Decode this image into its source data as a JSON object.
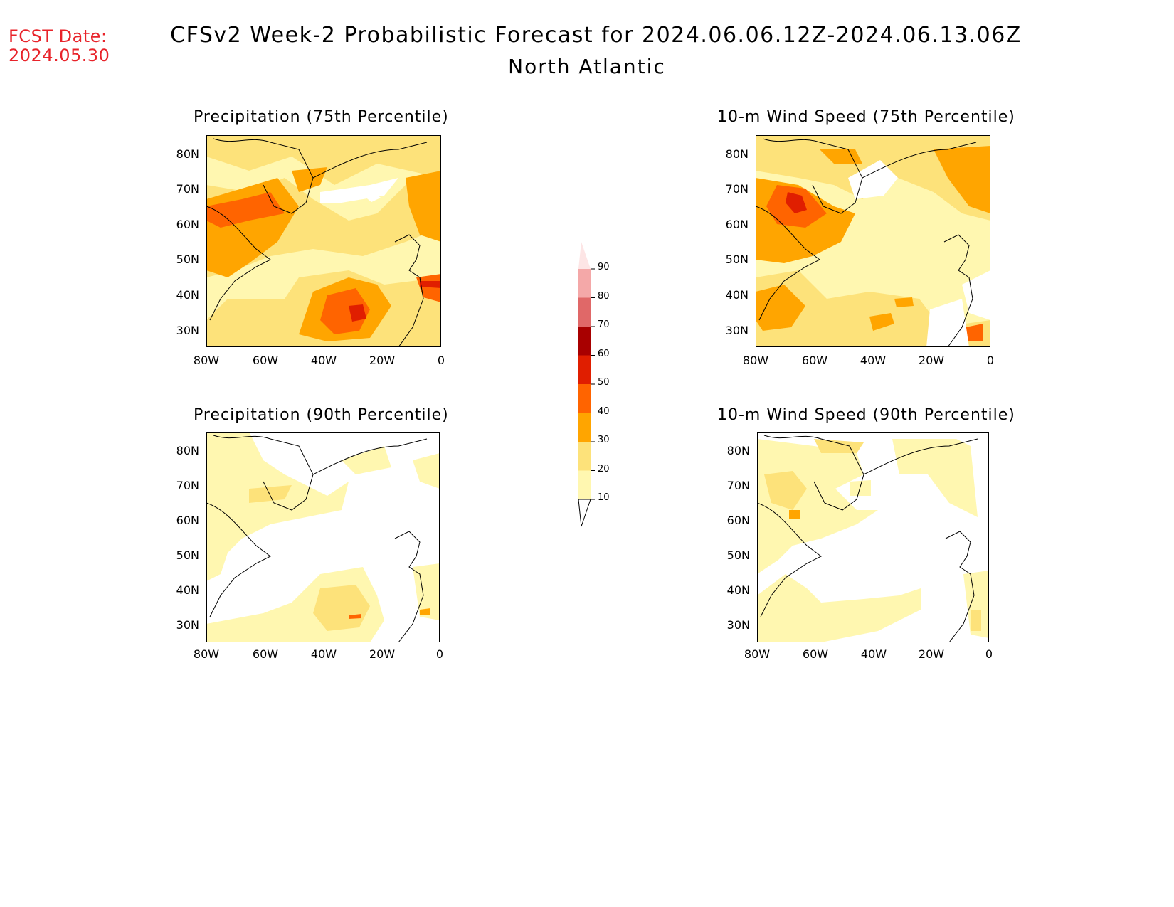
{
  "header": {
    "fcst_date_label": "FCST Date:",
    "fcst_date_value": "2024.05.30",
    "title": "CFSv2 Week-2 Probabilistic Forecast for 2024.06.06.12Z-2024.06.13.06Z",
    "subtitle": "North Atlantic"
  },
  "panels": [
    {
      "title": "Precipitation (75th Percentile)"
    },
    {
      "title": "10-m Wind Speed (75th Percentile)"
    },
    {
      "title": "Precipitation (90th Percentile)"
    },
    {
      "title": "10-m Wind Speed (90th Percentile)"
    }
  ],
  "axes": {
    "lat_labels": [
      "80N",
      "70N",
      "60N",
      "50N",
      "40N",
      "30N"
    ],
    "lon_labels": [
      "80W",
      "60W",
      "40W",
      "20W",
      "0"
    ]
  },
  "colorbar": {
    "levels": [
      "10",
      "20",
      "30",
      "40",
      "50",
      "60",
      "70",
      "80",
      "90"
    ],
    "colors": [
      "#fff7b0",
      "#fde27a",
      "#ffa500",
      "#ff6400",
      "#e01e00",
      "#a80000",
      "#e06868",
      "#f4a8a8",
      "#fde5e5"
    ]
  }
}
